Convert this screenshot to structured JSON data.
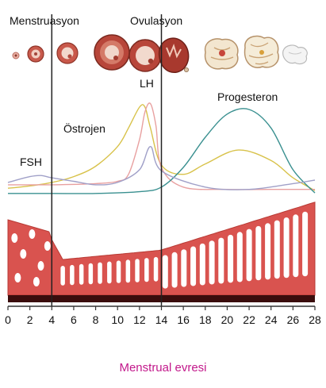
{
  "phase_labels": {
    "menstruation": "Menstruasyon",
    "ovulation": "Ovulasyon"
  },
  "hormone_labels": {
    "fsh": "FSH",
    "estrogen": "Östrojen",
    "lh": "LH",
    "progesterone": "Progesteron"
  },
  "caption": "Menstrual evresi",
  "colors": {
    "estrogen": "#d8c24a",
    "lh": "#e8a0a0",
    "progesterone": "#3a9090",
    "fsh": "#a0a0c8",
    "endometrium": "#d9534f",
    "endometrium_base": "#3a0d0d",
    "caption": "#c2188b"
  },
  "chart_data": {
    "type": "line",
    "xlim": [
      0,
      28
    ],
    "xticks": [
      0,
      2,
      4,
      6,
      8,
      10,
      12,
      14,
      16,
      18,
      20,
      22,
      24,
      26,
      28
    ],
    "xtick_labels": [
      "0",
      "2",
      "4",
      "6",
      "8",
      "10",
      "12",
      "14",
      "16",
      "18",
      "20",
      "22",
      "24",
      "26",
      "28"
    ],
    "ylim": [
      0,
      1
    ],
    "markers": [
      4,
      14
    ],
    "series": [
      {
        "name": "Östrojen",
        "x": [
          0,
          2,
          4,
          6,
          8,
          10,
          11,
          12,
          12.5,
          13,
          14,
          16,
          18,
          21,
          24,
          26,
          28
        ],
        "y": [
          0.06,
          0.08,
          0.11,
          0.16,
          0.25,
          0.42,
          0.58,
          0.76,
          0.76,
          0.58,
          0.26,
          0.18,
          0.27,
          0.39,
          0.3,
          0.15,
          0.04
        ]
      },
      {
        "name": "LH",
        "x": [
          0,
          4,
          8,
          10,
          11,
          12,
          12.5,
          13,
          13.5,
          14,
          16,
          20,
          24,
          28
        ],
        "y": [
          0.09,
          0.09,
          0.1,
          0.12,
          0.18,
          0.48,
          0.72,
          0.79,
          0.6,
          0.24,
          0.07,
          0.05,
          0.05,
          0.05
        ]
      },
      {
        "name": "Progesteron",
        "x": [
          0,
          4,
          8,
          12,
          14,
          16,
          18,
          20,
          22,
          24,
          26,
          28
        ],
        "y": [
          0.015,
          0.015,
          0.015,
          0.03,
          0.07,
          0.24,
          0.5,
          0.7,
          0.74,
          0.58,
          0.22,
          0.02
        ]
      },
      {
        "name": "FSH",
        "x": [
          0,
          2,
          3,
          4,
          6,
          8,
          10,
          12,
          13,
          14,
          18,
          22,
          26,
          28
        ],
        "y": [
          0.11,
          0.16,
          0.17,
          0.15,
          0.12,
          0.09,
          0.11,
          0.22,
          0.42,
          0.21,
          0.07,
          0.05,
          0.1,
          0.13
        ]
      }
    ]
  }
}
